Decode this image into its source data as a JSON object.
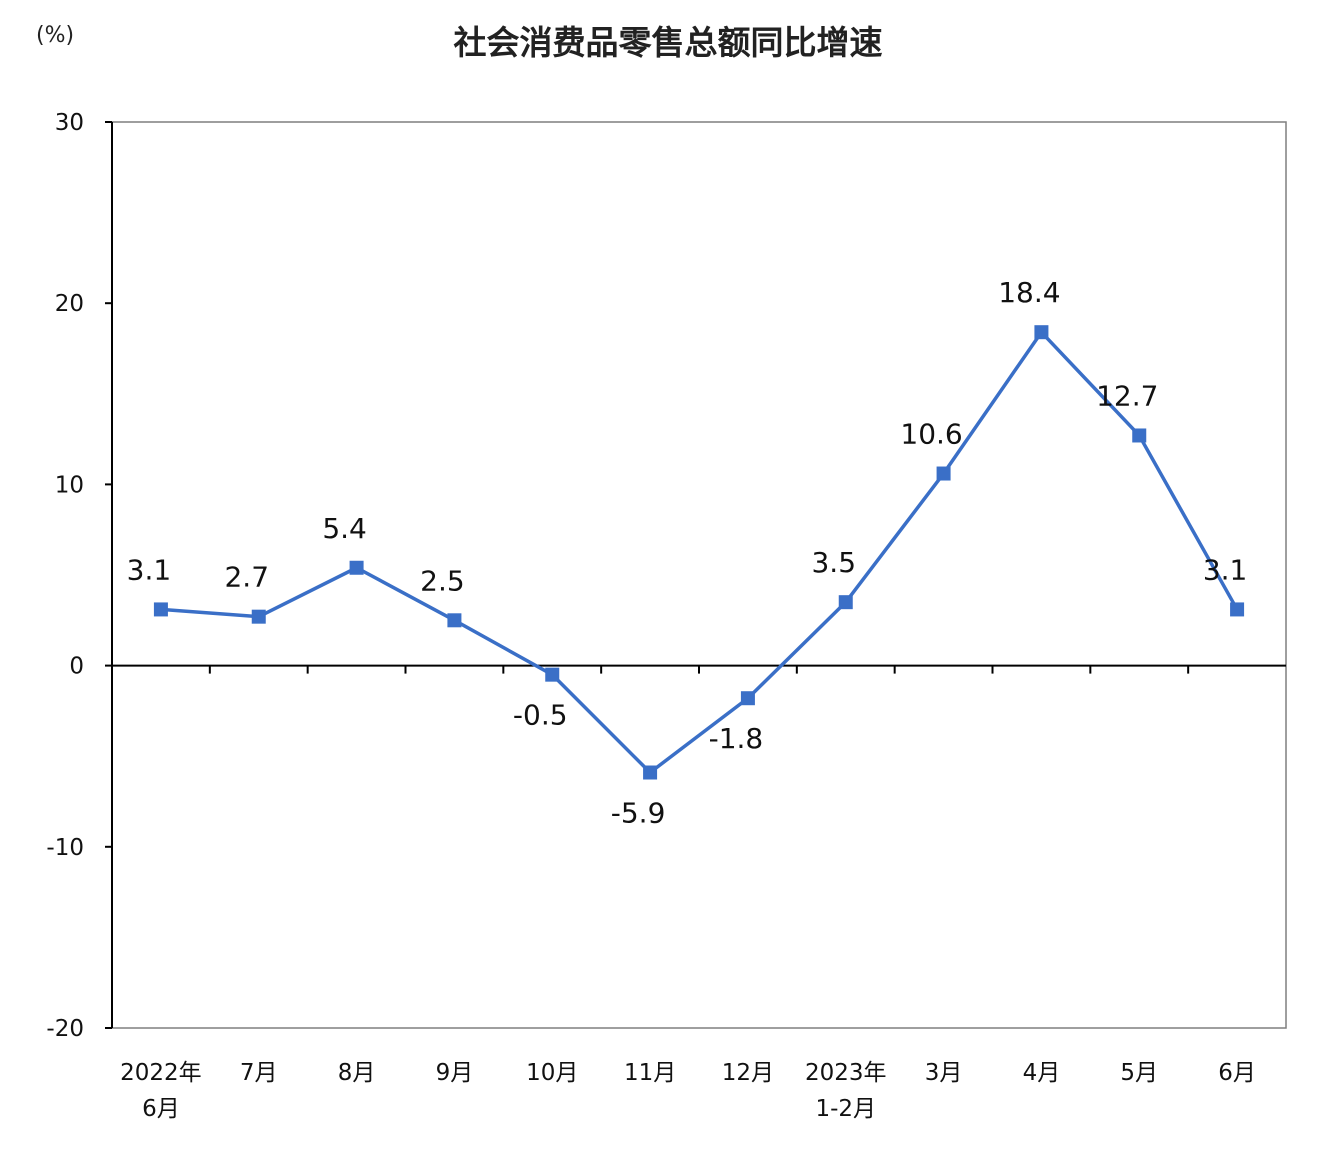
{
  "chart_data": {
    "type": "line",
    "title": "社会消费品零售总额同比增速",
    "unit": "(%)",
    "categories": [
      [
        "2022年",
        "6月"
      ],
      [
        "7月"
      ],
      [
        "8月"
      ],
      [
        "9月"
      ],
      [
        "10月"
      ],
      [
        "11月"
      ],
      [
        "12月"
      ],
      [
        "2023年",
        "1-2月"
      ],
      [
        "3月"
      ],
      [
        "4月"
      ],
      [
        "5月"
      ],
      [
        "6月"
      ]
    ],
    "series": [
      {
        "values": [
          3.1,
          2.7,
          5.4,
          2.5,
          -0.5,
          -5.9,
          -1.8,
          3.5,
          10.6,
          18.4,
          12.7,
          3.1
        ],
        "labels": [
          "3.1",
          "2.7",
          "5.4",
          "2.5",
          "-0.5",
          "-5.9",
          "-1.8",
          "3.5",
          "10.6",
          "18.4",
          "12.7",
          "3.1"
        ],
        "color": "#3a6fc7",
        "marker": "square"
      }
    ],
    "ylim": [
      -20,
      30
    ],
    "yticks": [
      -20,
      -10,
      0,
      10,
      20,
      30
    ],
    "ytick_labels": [
      "-20",
      "-10",
      "0",
      "10",
      "20",
      "30"
    ],
    "grid": false,
    "legend": "none"
  },
  "colors": {
    "line": "#3a6fc7",
    "marker": "#3a6fc7",
    "axis": "#000000",
    "frame": "#7f7f7f"
  }
}
